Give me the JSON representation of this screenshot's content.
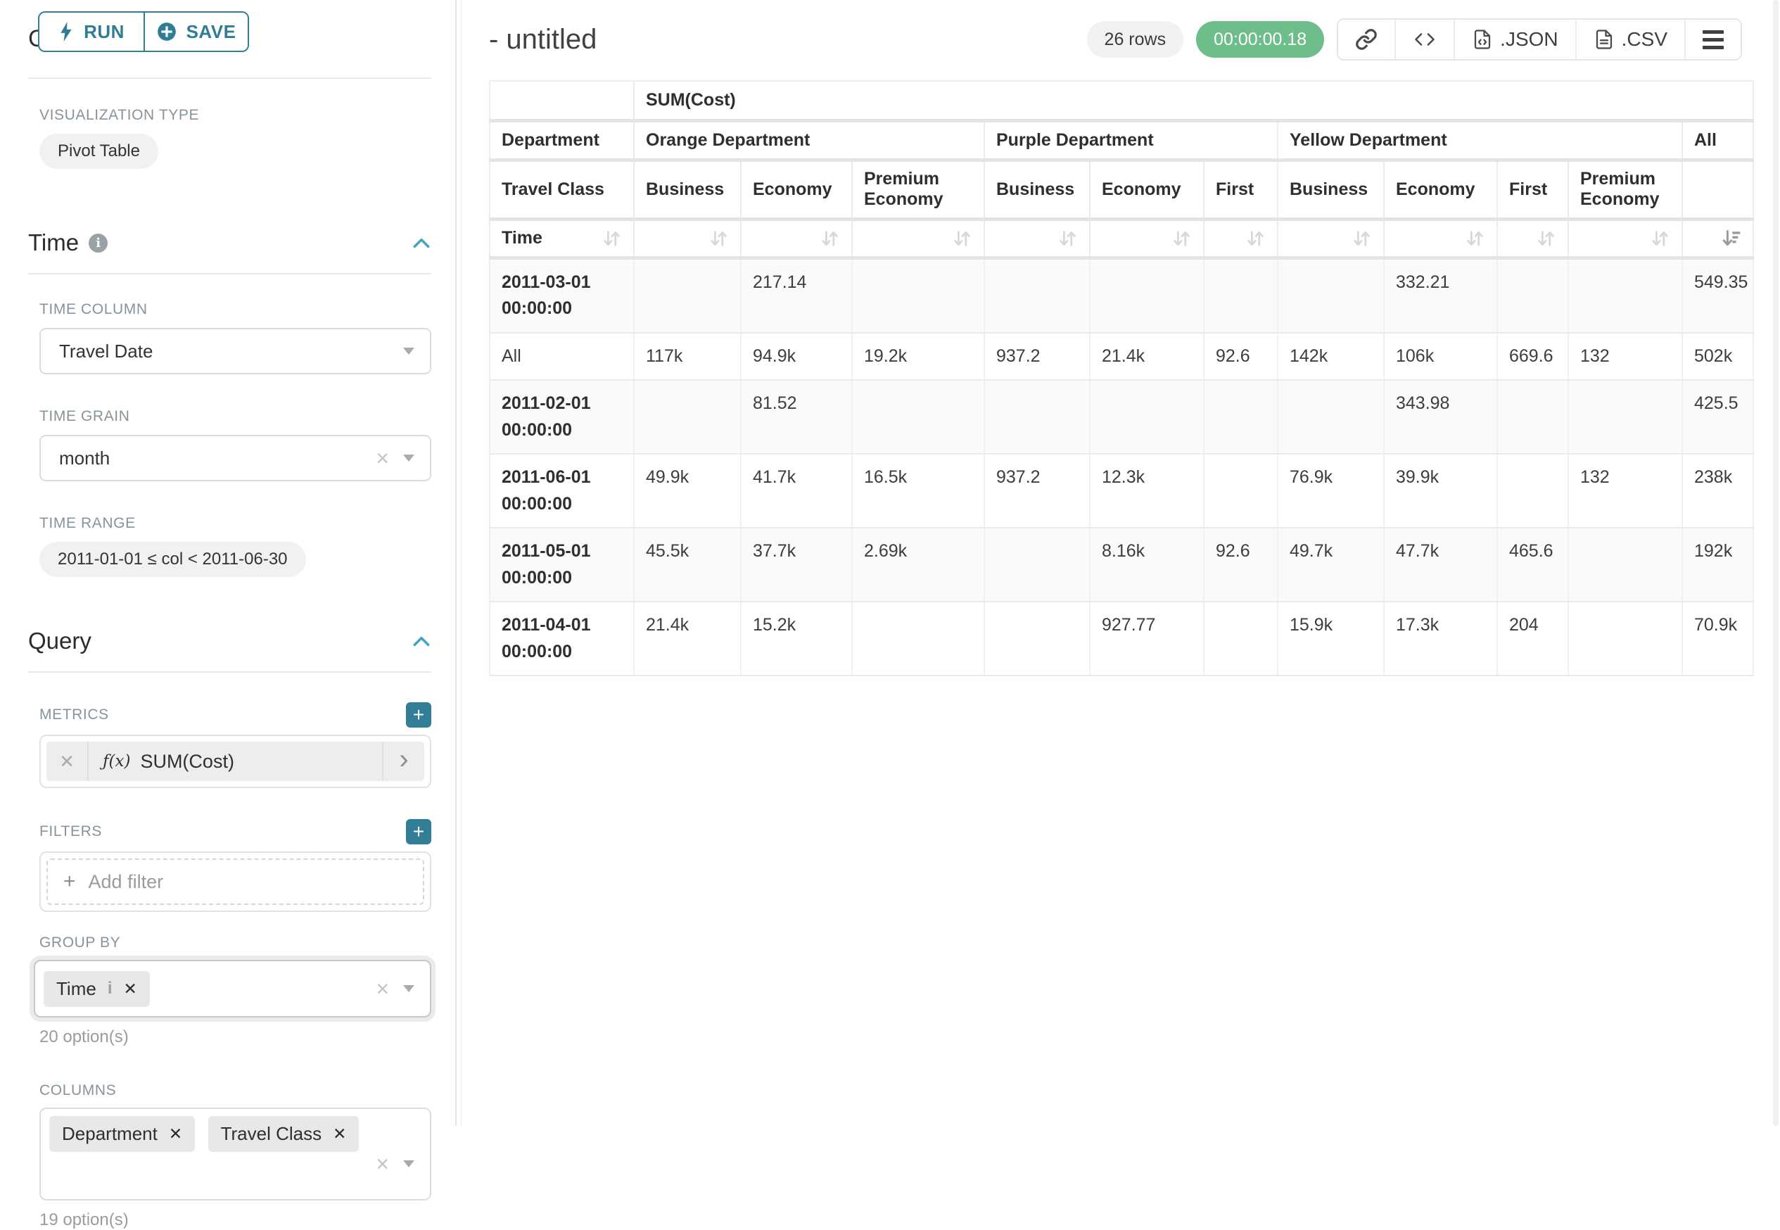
{
  "colors": {
    "accent": "#2f7d95",
    "accent_light": "#41a3c0",
    "success_badge": "#6ebe8b",
    "label_grey": "#87939a"
  },
  "sidebar": {
    "run_label": "RUN",
    "save_label": "SAVE",
    "chart_type_heading": "Chart Type",
    "visualization_type": {
      "label": "VISUALIZATION TYPE",
      "value": "Pivot Table"
    },
    "time_section": {
      "heading": "Time",
      "time_column": {
        "label": "TIME COLUMN",
        "value": "Travel Date"
      },
      "time_grain": {
        "label": "TIME GRAIN",
        "value": "month"
      },
      "time_range": {
        "label": "TIME RANGE",
        "value": "2011-01-01 ≤ col < 2011-06-30"
      }
    },
    "query_section": {
      "heading": "Query",
      "metrics": {
        "label": "METRICS",
        "fn_prefix": "ƒ(x)",
        "value": "SUM(Cost)"
      },
      "filters": {
        "label": "FILTERS",
        "placeholder": "Add filter"
      },
      "group_by": {
        "label": "GROUP BY",
        "values": [
          "Time"
        ],
        "options_hint": "20 option(s)"
      },
      "columns": {
        "label": "COLUMNS",
        "values": [
          "Department",
          "Travel Class"
        ],
        "options_hint": "19 option(s)"
      }
    }
  },
  "main": {
    "title": "- untitled",
    "row_count": "26 rows",
    "timer": "00:00:00.18",
    "export_json_label": ".JSON",
    "export_csv_label": ".CSV"
  },
  "pivot_table": {
    "metric_header": "SUM(Cost)",
    "col_dims": [
      "Department",
      "Travel Class"
    ],
    "row_dim": "Time",
    "groups": [
      {
        "label": "Orange Department",
        "cols": [
          "Business",
          "Economy",
          "Premium Economy"
        ]
      },
      {
        "label": "Purple Department",
        "cols": [
          "Business",
          "Economy",
          "First"
        ]
      },
      {
        "label": "Yellow Department",
        "cols": [
          "Business",
          "Economy",
          "First",
          "Premium Economy"
        ]
      },
      {
        "label": "All",
        "cols": [
          ""
        ]
      }
    ],
    "sort": {
      "active_flat_column": 10,
      "direction": "desc"
    },
    "rows": [
      {
        "label": "2011-03-01 00:00:00",
        "values": [
          "",
          "217.14",
          "",
          "",
          "",
          "",
          "",
          "332.21",
          "",
          "",
          "549.35"
        ]
      },
      {
        "label": "All",
        "values": [
          "117k",
          "94.9k",
          "19.2k",
          "937.2",
          "21.4k",
          "92.6",
          "142k",
          "106k",
          "669.6",
          "132",
          "502k"
        ]
      },
      {
        "label": "2011-02-01 00:00:00",
        "values": [
          "",
          "81.52",
          "",
          "",
          "",
          "",
          "",
          "343.98",
          "",
          "",
          "425.5"
        ]
      },
      {
        "label": "2011-06-01 00:00:00",
        "values": [
          "49.9k",
          "41.7k",
          "16.5k",
          "937.2",
          "12.3k",
          "",
          "76.9k",
          "39.9k",
          "",
          "132",
          "238k"
        ]
      },
      {
        "label": "2011-05-01 00:00:00",
        "values": [
          "45.5k",
          "37.7k",
          "2.69k",
          "",
          "8.16k",
          "92.6",
          "49.7k",
          "47.7k",
          "465.6",
          "",
          "192k"
        ]
      },
      {
        "label": "2011-04-01 00:00:00",
        "values": [
          "21.4k",
          "15.2k",
          "",
          "",
          "927.77",
          "",
          "15.9k",
          "17.3k",
          "204",
          "",
          "70.9k"
        ]
      }
    ]
  }
}
